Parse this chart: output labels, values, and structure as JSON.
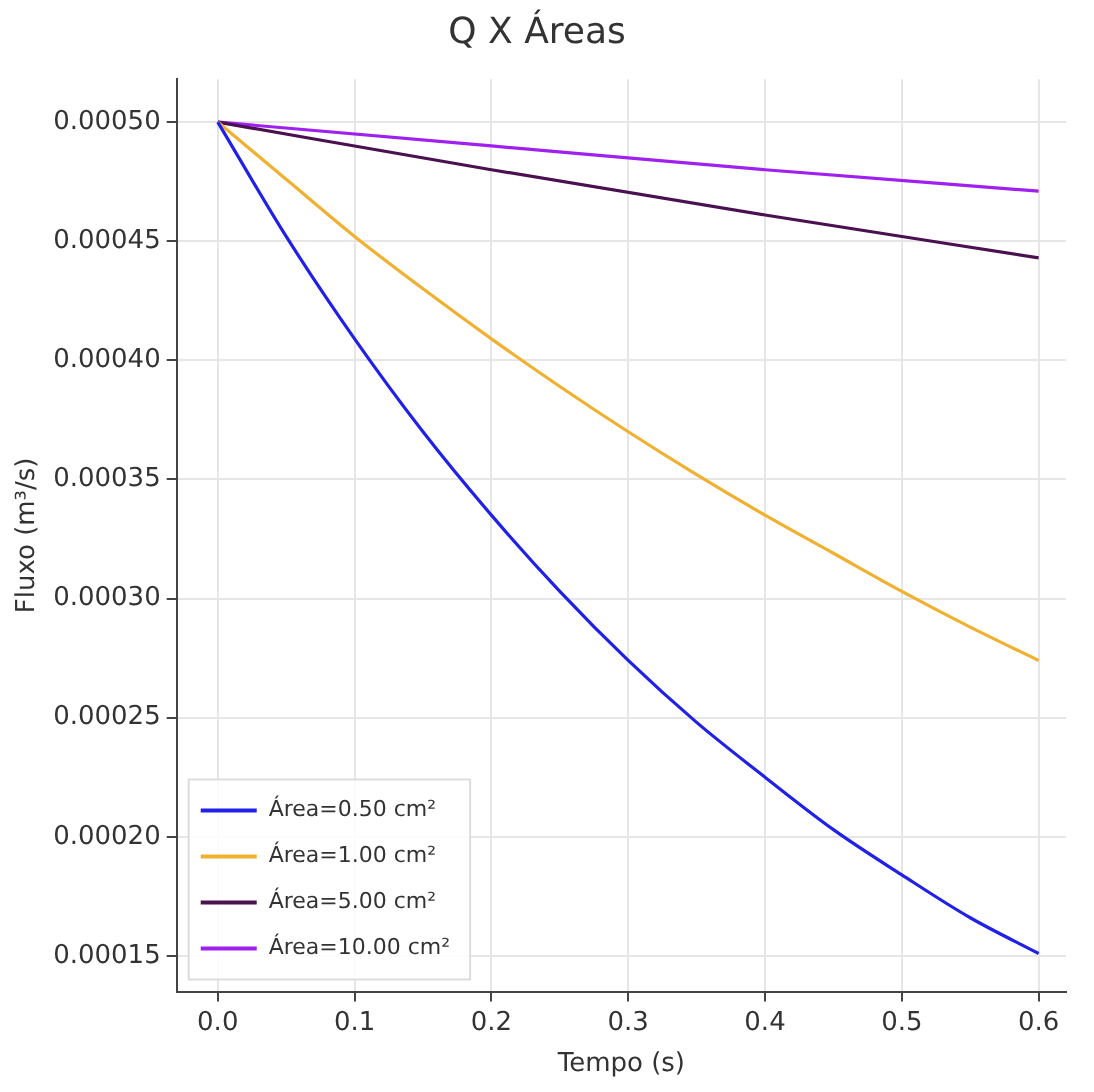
{
  "chart_data": {
    "type": "line",
    "title": "Q X Áreas",
    "xlabel": "Tempo (s)",
    "ylabel": "Fluxo (m³/s)",
    "xlim": [
      -0.03,
      0.62
    ],
    "ylim": [
      0.000135,
      0.000518
    ],
    "xticks": [
      {
        "value": 0,
        "label": "0.0"
      },
      {
        "value": 0.1,
        "label": "0.1"
      },
      {
        "value": 0.2,
        "label": "0.2"
      },
      {
        "value": 0.3,
        "label": "0.3"
      },
      {
        "value": 0.4,
        "label": "0.4"
      },
      {
        "value": 0.5,
        "label": "0.5"
      },
      {
        "value": 0.6,
        "label": "0.6"
      }
    ],
    "yticks": [
      {
        "value": 0.00015,
        "label": "0.00015"
      },
      {
        "value": 0.0002,
        "label": "0.00020"
      },
      {
        "value": 0.00025,
        "label": "0.00025"
      },
      {
        "value": 0.0003,
        "label": "0.00030"
      },
      {
        "value": 0.00035,
        "label": "0.00035"
      },
      {
        "value": 0.0004,
        "label": "0.00040"
      },
      {
        "value": 0.00045,
        "label": "0.00045"
      },
      {
        "value": 0.0005,
        "label": "0.00050"
      }
    ],
    "grid": true,
    "legend": "bottom left",
    "marker": "none",
    "line_style": "solid",
    "series": [
      {
        "name": "Área=0.50 cm²",
        "color": "#2020e8",
        "x": [
          0,
          0.05,
          0.1,
          0.15,
          0.2,
          0.25,
          0.3,
          0.35,
          0.4,
          0.45,
          0.5,
          0.55,
          0.6
        ],
        "values": [
          0.0005,
          0.000452,
          0.000409,
          0.00037,
          0.000335,
          0.000303,
          0.000274,
          0.000248,
          0.000225,
          0.000203,
          0.000184,
          0.000166,
          0.000151
        ]
      },
      {
        "name": "Área=1.00 cm²",
        "color": "#f0b030",
        "x": [
          0,
          0.05,
          0.1,
          0.15,
          0.2,
          0.25,
          0.3,
          0.35,
          0.4,
          0.45,
          0.5,
          0.55,
          0.6
        ],
        "values": [
          0.0005,
          0.000476,
          0.000452,
          0.00043,
          0.000409,
          0.000389,
          0.00037,
          0.000352,
          0.000335,
          0.000319,
          0.000303,
          0.000288,
          0.000274
        ]
      },
      {
        "name": "Área=5.00 cm²",
        "color": "#4b1050",
        "x": [
          0,
          0.2,
          0.4,
          0.6
        ],
        "values": [
          0.0005,
          0.00048,
          0.000461,
          0.000443
        ]
      },
      {
        "name": "Área=10.00 cm²",
        "color": "#a020f0",
        "x": [
          0,
          0.2,
          0.4,
          0.6
        ],
        "values": [
          0.0005,
          0.00049,
          0.00048,
          0.000471
        ]
      }
    ]
  }
}
